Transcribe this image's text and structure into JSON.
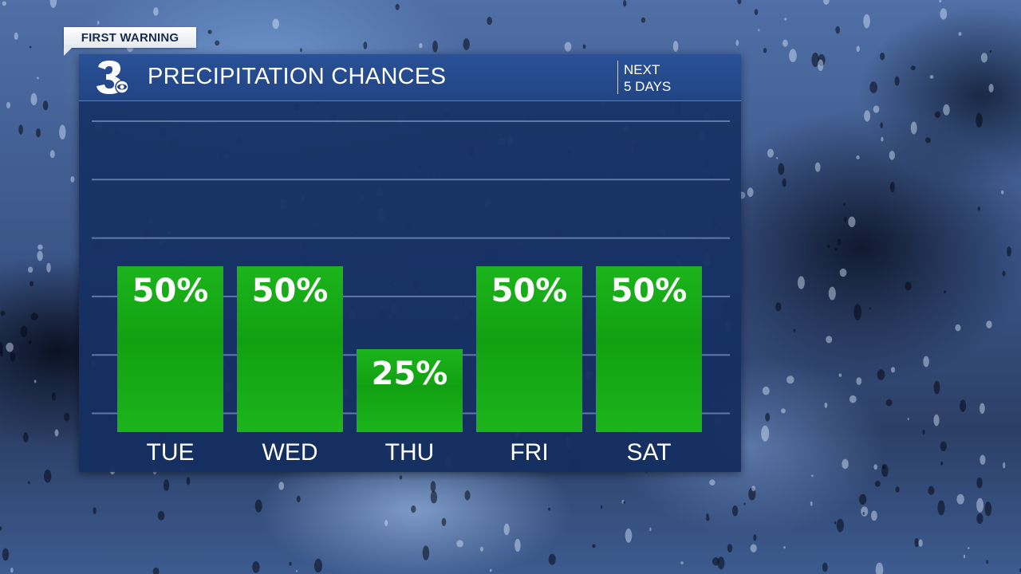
{
  "banner": {
    "label": "FIRST WARNING"
  },
  "header": {
    "logo_icon": "channel-3-cbs-logo-icon",
    "title": "PRECIPITATION CHANCES",
    "period_line1": "NEXT",
    "period_line2": "5 DAYS"
  },
  "colors": {
    "bar": "#11a011",
    "bar_light": "#1cb41c",
    "panel": "#183468",
    "header": "#2a5196",
    "grid": "#5d79a8"
  },
  "chart_data": {
    "type": "bar",
    "categories": [
      "TUE",
      "WED",
      "THU",
      "FRI",
      "SAT"
    ],
    "values": [
      50,
      50,
      25,
      50,
      50
    ],
    "value_labels": [
      "50%",
      "50%",
      "25%",
      "50%",
      "50%"
    ],
    "title": "PRECIPITATION CHANCES",
    "xlabel": "",
    "ylabel": "",
    "ylim": [
      0,
      100
    ],
    "grid": true,
    "gridlines": 6
  }
}
